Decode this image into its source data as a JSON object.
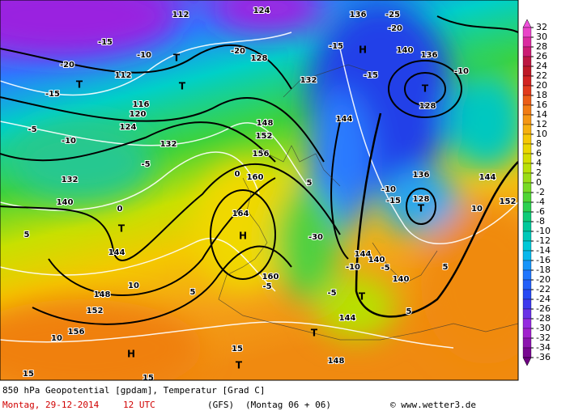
{
  "footer": {
    "title": "850 hPa Geopotential [gpdam], Temperatur [Grad C]",
    "date": "Montag, 29-12-2014",
    "time": "12 UTC",
    "model": "(GFS)",
    "run": "(Montag 06 + 06)",
    "credit": "© www.wetter3.de"
  },
  "legend": {
    "ticks": [
      32,
      30,
      28,
      26,
      24,
      22,
      20,
      18,
      16,
      14,
      12,
      10,
      8,
      6,
      4,
      2,
      0,
      -2,
      -4,
      -6,
      -8,
      -10,
      -12,
      -14,
      -16,
      -18,
      -20,
      -22,
      -24,
      -26,
      -28,
      -30,
      -32,
      -34,
      -36
    ]
  },
  "map_labels": [
    "H",
    "H",
    "H",
    "T",
    "T",
    "T",
    "T",
    "T",
    "T",
    "T",
    "T",
    "T",
    "144",
    "144",
    "144",
    "144",
    "144",
    "136",
    "136",
    "136",
    "128",
    "128",
    "128",
    "152",
    "152",
    "152",
    "160",
    "160",
    "164",
    "156",
    "156",
    "148",
    "148",
    "148",
    "140",
    "140",
    "140",
    "140",
    "132",
    "132",
    "132",
    "124",
    "124",
    "120",
    "116",
    "112",
    "112",
    "-10",
    "-10",
    "-10",
    "-10",
    "-10",
    "-5",
    "-5",
    "-5",
    "-5",
    "-5",
    "0",
    "0",
    "5",
    "5",
    "5",
    "5",
    "5",
    "10",
    "10",
    "10",
    "15",
    "15",
    "15",
    "-15",
    "-15",
    "-15",
    "-15",
    "-15",
    "-20",
    "-20",
    "-20",
    "-25",
    "-30"
  ]
}
